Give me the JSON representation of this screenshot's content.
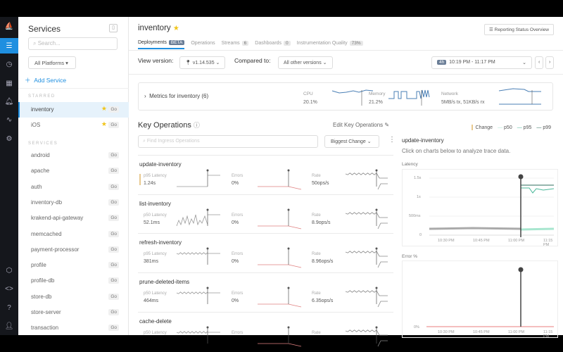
{
  "nav": {
    "icons": [
      "logo-icon",
      "services-icon",
      "clock-icon",
      "dashboard-icon",
      "bell-icon",
      "activity-icon",
      "gear-icon",
      "package-icon",
      "code-icon",
      "help-icon",
      "user-icon"
    ]
  },
  "services_panel": {
    "title": "Services",
    "search_placeholder": "Search...",
    "platform": "All Platforms ▾",
    "add": "Add Service",
    "starred_label": "STARRED",
    "services_label": "SERVICES",
    "go": "Go",
    "starred": [
      {
        "name": "inventory",
        "selected": true
      },
      {
        "name": "iOS"
      }
    ],
    "services": [
      "android",
      "apache",
      "auth",
      "inventory-db",
      "krakend-api-gateway",
      "memcached",
      "payment-processor",
      "profile",
      "profile-db",
      "store-db",
      "store-server",
      "transaction"
    ]
  },
  "header": {
    "title": "inventory",
    "reporting": "☰ Reporting Status Overview",
    "tabs": [
      {
        "label": "Deployments",
        "badge": "BETA",
        "active": true
      },
      {
        "label": "Operations"
      },
      {
        "label": "Streams",
        "badge": "6"
      },
      {
        "label": "Dashboards",
        "badge": "0"
      },
      {
        "label": "Instrumentation Quality",
        "badge": "73%"
      }
    ]
  },
  "filters": {
    "view_label": "View version:",
    "version": "v1.14.535",
    "compared_label": "Compared to:",
    "compared": "All other versions",
    "range_badge": "4h",
    "range": "10:19 PM - 11:17 PM"
  },
  "metrics": {
    "title": "Metrics for inventory (6)",
    "cpu_label": "CPU",
    "cpu": "20.1%",
    "mem_label": "Memory",
    "mem": "21.2%",
    "net_label": "Network",
    "net": "5MB/s tx, 51KB/s rx"
  },
  "key_ops": {
    "title": "Key Operations",
    "edit": "Edit Key Operations",
    "search_placeholder": "Find Ingress Operations",
    "sort": "Biggest Change",
    "errors_label": "Errors",
    "rate_label": "Rate",
    "rows": [
      {
        "name": "update-inventory",
        "lat_label": "p95 Latency",
        "lat": "1.24s",
        "err": "0%",
        "rate": "50ops/s"
      },
      {
        "name": "list-inventory",
        "lat_label": "p50 Latency",
        "lat": "52.1ms",
        "err": "0%",
        "rate": "8.9ops/s"
      },
      {
        "name": "refresh-inventory",
        "lat_label": "p95 Latency",
        "lat": "381ms",
        "err": "0%",
        "rate": "8.96ops/s"
      },
      {
        "name": "prune-deleted-items",
        "lat_label": "p50 Latency",
        "lat": "464ms",
        "err": "0%",
        "rate": "6.35ops/s"
      },
      {
        "name": "cache-delete",
        "lat_label": "p50 Latency",
        "lat": "",
        "err": "",
        "rate": ""
      }
    ]
  },
  "detail": {
    "legend": {
      "change": "Change",
      "p50": "p50",
      "p95": "p95",
      "p99": "p99"
    },
    "title": "update-inventory",
    "subtitle": "Click on charts below to analyze trace data.",
    "latency_label": "Latency",
    "latency_ticks": [
      "1.5s",
      "1s",
      "500ms",
      "0"
    ],
    "error_label": "Error %",
    "error_ticks": [
      "0%"
    ],
    "x_ticks": [
      "10:30 PM",
      "10:45 PM",
      "11:00 PM",
      "11:15 PM"
    ],
    "colors": {
      "p50": "#a8e6cf",
      "p95": "#4bb89a",
      "p99": "#2d6e5e",
      "change": "#e8c98f",
      "error": "#e05050"
    }
  }
}
